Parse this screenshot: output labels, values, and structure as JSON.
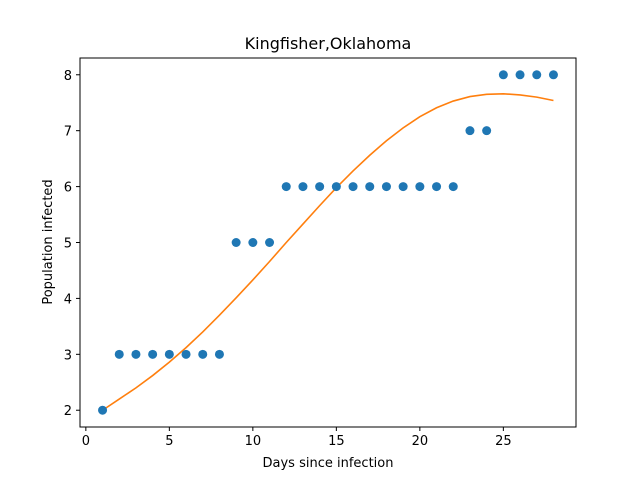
{
  "chart_data": {
    "type": "scatter",
    "title": "Kingfisher,Oklahoma",
    "xlabel": "Days since infection",
    "ylabel": "Population infected",
    "xlim": [
      -0.35,
      29.35
    ],
    "ylim": [
      1.7,
      8.3
    ],
    "xticks": [
      0,
      5,
      10,
      15,
      20,
      25
    ],
    "yticks": [
      2,
      3,
      4,
      5,
      6,
      7,
      8
    ],
    "grid": false,
    "legend": "none",
    "series": [
      {
        "kind": "scatter",
        "color": "#1f77b4",
        "x": [
          1,
          2,
          3,
          4,
          5,
          6,
          7,
          8,
          9,
          10,
          11,
          12,
          13,
          14,
          15,
          16,
          17,
          18,
          19,
          20,
          21,
          22,
          23,
          24,
          25,
          26,
          27,
          28
        ],
        "y": [
          2,
          3,
          3,
          3,
          3,
          3,
          3,
          3,
          5,
          5,
          5,
          6,
          6,
          6,
          6,
          6,
          6,
          6,
          6,
          6,
          6,
          6,
          7,
          7,
          8,
          8,
          8,
          8
        ]
      },
      {
        "kind": "line",
        "color": "#ff7f0e",
        "x": [
          1,
          2,
          3,
          4,
          5,
          6,
          7,
          8,
          9,
          10,
          11,
          12,
          13,
          14,
          15,
          16,
          17,
          18,
          19,
          20,
          21,
          22,
          23,
          24,
          25,
          26,
          27,
          28
        ],
        "y": [
          2.0,
          2.2,
          2.4,
          2.62,
          2.86,
          3.12,
          3.4,
          3.7,
          4.01,
          4.33,
          4.66,
          5.0,
          5.33,
          5.66,
          5.98,
          6.28,
          6.56,
          6.82,
          7.05,
          7.25,
          7.41,
          7.53,
          7.61,
          7.65,
          7.66,
          7.64,
          7.6,
          7.54
        ]
      }
    ]
  }
}
